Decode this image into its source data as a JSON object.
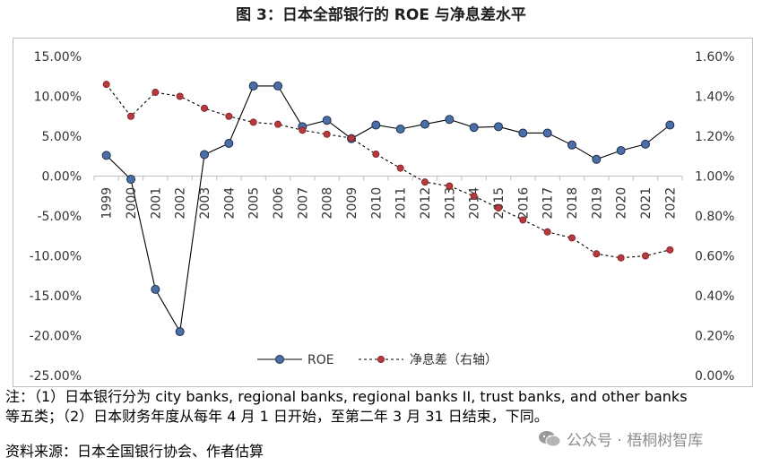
{
  "title": "图 3：日本全部银行的 ROE 与净息差水平",
  "chart_data": {
    "type": "line",
    "categories": [
      "1999",
      "2000",
      "2001",
      "2002",
      "2003",
      "2004",
      "2005",
      "2006",
      "2007",
      "2008",
      "2009",
      "2010",
      "2011",
      "2012",
      "2013",
      "2014",
      "2015",
      "2016",
      "2017",
      "2018",
      "2019",
      "2020",
      "2021",
      "2022"
    ],
    "series": [
      {
        "name": "ROE",
        "axis": "left",
        "style": "solid",
        "color": "#000000",
        "marker_color": "#4a6fa8",
        "values": [
          2.6,
          -0.4,
          -14.2,
          -19.5,
          2.7,
          4.1,
          11.3,
          11.3,
          6.2,
          7.0,
          4.7,
          6.4,
          5.9,
          6.5,
          7.1,
          6.1,
          6.2,
          5.4,
          5.4,
          3.9,
          2.1,
          3.2,
          4.0,
          6.4
        ]
      },
      {
        "name": "净息差（右轴）",
        "axis": "right",
        "style": "dashed",
        "color": "#000000",
        "marker_color": "#b8393c",
        "values": [
          1.46,
          1.3,
          1.42,
          1.4,
          1.34,
          1.3,
          1.27,
          1.26,
          1.23,
          1.21,
          1.19,
          1.11,
          1.04,
          0.97,
          0.95,
          0.9,
          0.84,
          0.78,
          0.72,
          0.69,
          0.61,
          0.59,
          0.6,
          0.63
        ]
      }
    ],
    "y_left": {
      "min": -25,
      "max": 15,
      "step": 5,
      "tick_labels": [
        "-25.00%",
        "-20.00%",
        "-15.00%",
        "-10.00%",
        "-5.00%",
        "0.00%",
        "5.00%",
        "10.00%",
        "15.00%"
      ]
    },
    "y_right": {
      "min": 0,
      "max": 1.6,
      "step": 0.2,
      "tick_labels": [
        "0.00%",
        "0.20%",
        "0.40%",
        "0.60%",
        "0.80%",
        "1.00%",
        "1.20%",
        "1.40%",
        "1.60%"
      ]
    },
    "grid": false,
    "legend": "bottom-center"
  },
  "notes": {
    "line1": "注：（1）日本银行分为 city banks, regional banks, regional banks II, trust banks, and other banks",
    "line2": "等五类；（2）日本财务年度从每年 4 月 1 日开始，至第二年 3 月 31 日结束，下同。",
    "source": "资料来源：日本全国银行协会、作者估算"
  },
  "watermark": "公众号 · 梧桐树智库",
  "watermark_icon": "wechat-icon"
}
